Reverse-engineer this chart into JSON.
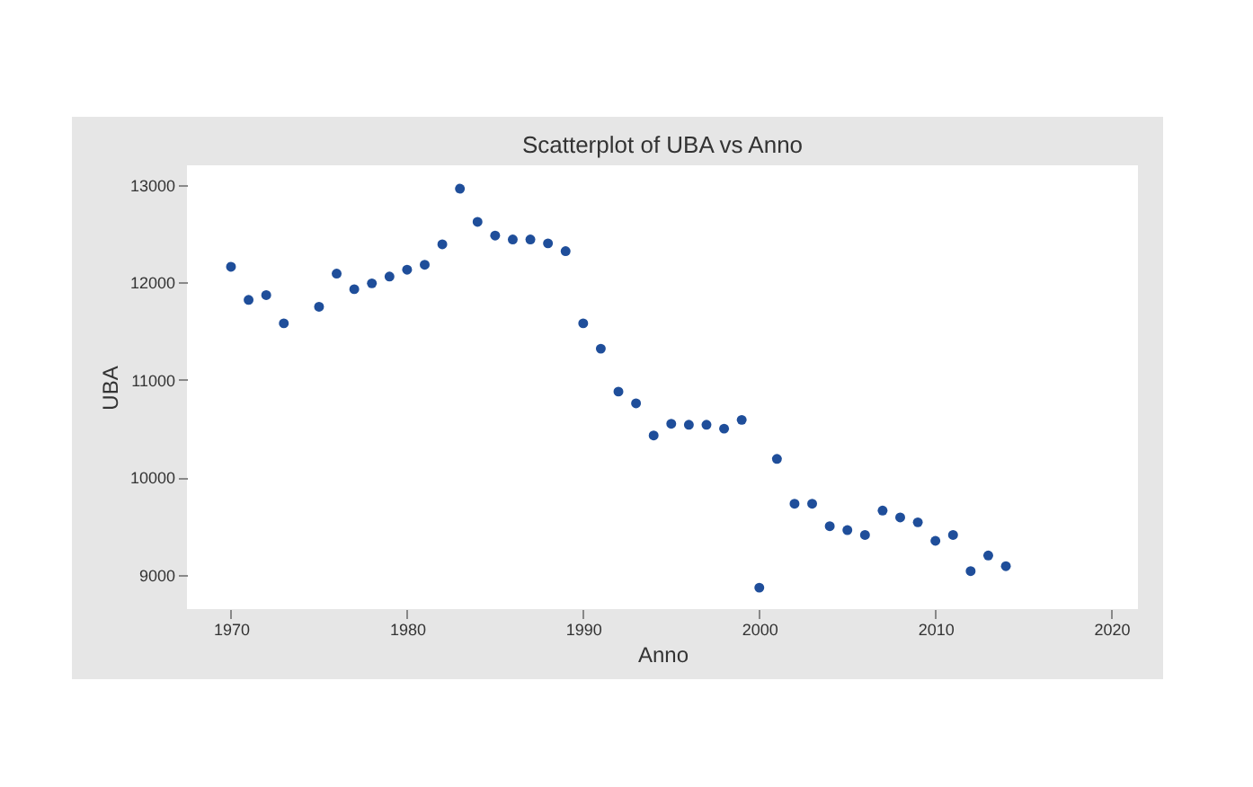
{
  "chart_data": {
    "type": "scatter",
    "title": "Scatterplot of UBA vs Anno",
    "xlabel": "Anno",
    "ylabel": "UBA",
    "x": [
      1970,
      1971,
      1972,
      1973,
      1975,
      1976,
      1977,
      1978,
      1979,
      1980,
      1981,
      1982,
      1983,
      1984,
      1985,
      1986,
      1987,
      1988,
      1989,
      1990,
      1991,
      1992,
      1993,
      1994,
      1995,
      1996,
      1997,
      1998,
      1999,
      2000,
      2001,
      2002,
      2003,
      2004,
      2005,
      2006,
      2007,
      2008,
      2009,
      2010,
      2011,
      2012,
      2013,
      2014
    ],
    "series": [
      {
        "color": "#1f4e9a",
        "values": [
          12160,
          11820,
          11870,
          11580,
          11750,
          12090,
          11930,
          11990,
          12060,
          12130,
          12180,
          12390,
          12960,
          12620,
          12480,
          12440,
          12440,
          12400,
          12320,
          11580,
          11320,
          10880,
          10760,
          10430,
          10550,
          10540,
          10540,
          10500,
          10590,
          8870,
          10190,
          9730,
          9730,
          9500,
          9460,
          9410,
          9660,
          9590,
          9540,
          9350,
          9410,
          9040,
          9200,
          9090
        ]
      }
    ],
    "xlim": [
      1967.5,
      2021.5
    ],
    "ylim": [
      8650,
      13200
    ],
    "xticks": [
      1970,
      1980,
      1990,
      2000,
      2010,
      2020
    ],
    "yticks": [
      9000,
      10000,
      11000,
      12000,
      13000
    ],
    "marker": "circle",
    "grid": false
  }
}
